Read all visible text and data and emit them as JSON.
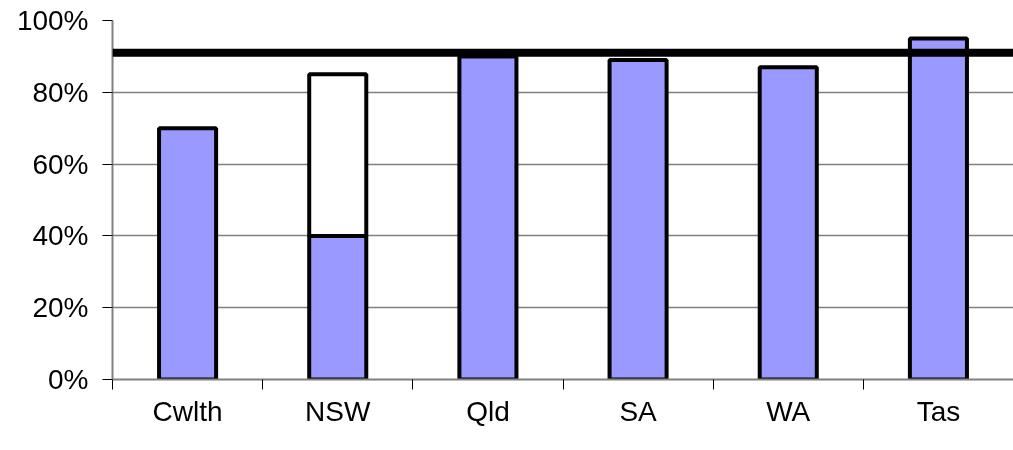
{
  "chart_data": {
    "type": "bar",
    "categories": [
      "Cwlth",
      "NSW",
      "Qld",
      "SA",
      "WA",
      "Tas"
    ],
    "series": [
      {
        "color": "#9999ff",
        "values": [
          70,
          40,
          90,
          89,
          87,
          95
        ]
      },
      {
        "color": "#ffffff",
        "values": [
          null,
          45,
          null,
          null,
          null,
          null
        ]
      }
    ],
    "stacked": true,
    "ylim": [
      0,
      100
    ],
    "yticks": [
      {
        "value": 0,
        "label": "0%"
      },
      {
        "value": 20,
        "label": "20%"
      },
      {
        "value": 40,
        "label": "40%"
      },
      {
        "value": 60,
        "label": "60%"
      },
      {
        "value": 80,
        "label": "80%"
      },
      {
        "value": 100,
        "label": "100%"
      }
    ],
    "grid": "y",
    "ref_lines": [
      {
        "axis": "y",
        "value": 91,
        "color": "#000000"
      }
    ]
  }
}
